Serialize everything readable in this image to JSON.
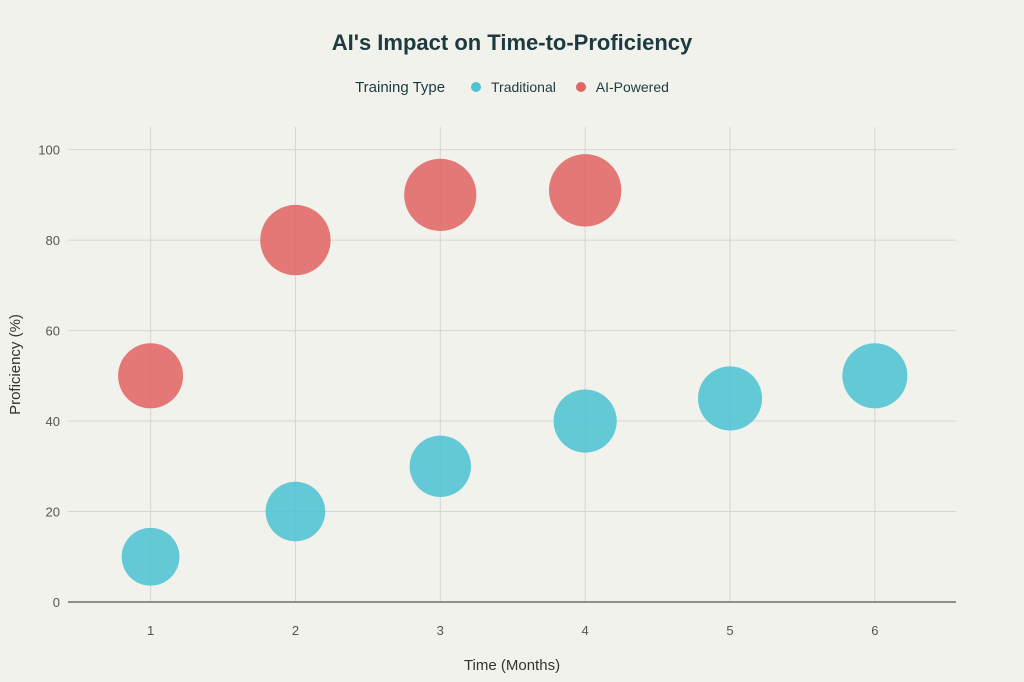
{
  "chart_data": {
    "type": "scatter",
    "title": "AI's Impact on Time-to-Proficiency",
    "xlabel": "Time (Months)",
    "ylabel": "Proficiency (%)",
    "xlim": [
      0.43,
      6.56
    ],
    "ylim": [
      0,
      105
    ],
    "xticks": [
      1,
      2,
      3,
      4,
      5,
      6
    ],
    "yticks": [
      0,
      20,
      40,
      60,
      80,
      100
    ],
    "grid": true,
    "legend": {
      "title": "Training Type",
      "placement": "top-center"
    },
    "series": [
      {
        "name": "Traditional",
        "color": "#4fc3d4",
        "x": [
          1,
          2,
          3,
          4,
          5,
          6
        ],
        "y": [
          10,
          20,
          30,
          40,
          45,
          50
        ]
      },
      {
        "name": "AI-Powered",
        "color": "#e06666",
        "x": [
          1,
          2,
          3,
          4
        ],
        "y": [
          50,
          80,
          90,
          91
        ]
      }
    ]
  }
}
